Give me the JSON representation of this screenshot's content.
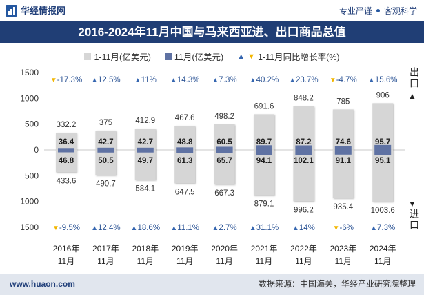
{
  "header": {
    "logo_text": "华经情报网",
    "slogans": [
      "专业严谨",
      "客观科学"
    ]
  },
  "colors": {
    "ytd_bar": "#d6d6d6",
    "month_bar": "#5f72a3",
    "up": "#3566b0",
    "down": "#f2b600",
    "title_bg": "#203e75"
  },
  "chart_data": {
    "type": "bar",
    "title": "2016-2024年11月中国与马来西亚进、出口商品总值",
    "legend": {
      "ytd": "1-11月(亿美元)",
      "month": "11月(亿美元)",
      "growth": "1-11月同比增长率(%)"
    },
    "markers": {
      "up": "▲",
      "down": "▼"
    },
    "growth_unit": "%",
    "categories": [
      [
        "2016年",
        "11月"
      ],
      [
        "2017年",
        "11月"
      ],
      [
        "2018年",
        "11月"
      ],
      [
        "2019年",
        "11月"
      ],
      [
        "2020年",
        "11月"
      ],
      [
        "2021年",
        "11月"
      ],
      [
        "2022年",
        "11月"
      ],
      [
        "2023年",
        "11月"
      ],
      [
        "2024年",
        "11月"
      ]
    ],
    "ylim": [
      -1500,
      1500
    ],
    "yticks": [
      1500,
      1000,
      500,
      0,
      -500,
      -1000,
      -1500
    ],
    "ytick_labels": [
      "1500",
      "1000",
      "500",
      "0",
      "500",
      "1000",
      "1500"
    ],
    "export": {
      "label": "出口",
      "ytd": [
        332.2,
        375,
        412.9,
        467.6,
        498.2,
        691.6,
        848.2,
        785,
        906
      ],
      "month": [
        36.4,
        42.7,
        42.7,
        48.8,
        60.5,
        89.7,
        87.2,
        74.6,
        95.7
      ],
      "growth": [
        -17.3,
        12.5,
        11,
        14.3,
        7.3,
        40.2,
        23.7,
        -4.7,
        15.6
      ]
    },
    "import": {
      "label": "进口",
      "ytd": [
        433.6,
        490.7,
        584.1,
        647.5,
        667.3,
        879.1,
        996.2,
        935.4,
        1003.6
      ],
      "month": [
        46.8,
        50.5,
        49.7,
        61.3,
        65.7,
        94.1,
        102.1,
        91.1,
        95.1
      ],
      "growth": [
        -9.5,
        12.4,
        18.6,
        11.1,
        2.7,
        31.1,
        14,
        -6,
        7.3
      ]
    }
  },
  "footer": {
    "url": "www.huaon.com",
    "source": "数据来源：中国海关，华经产业研究院整理"
  }
}
